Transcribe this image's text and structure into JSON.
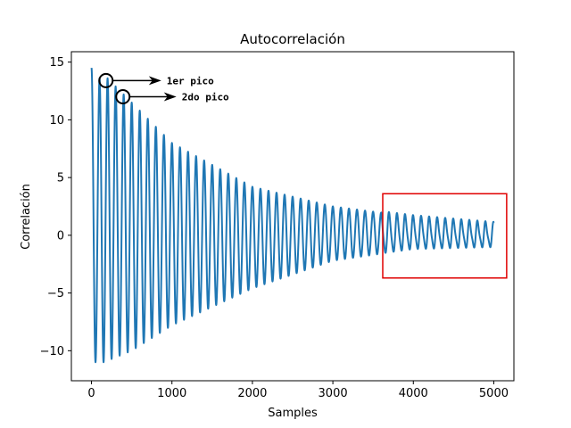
{
  "chart_data": {
    "type": "line",
    "title": "Autocorrelación",
    "xlabel": "Samples",
    "ylabel": "Correlación",
    "xlim": [
      -250,
      5250
    ],
    "ylim": [
      -12.6,
      15.9
    ],
    "xticks": [
      0,
      1000,
      2000,
      3000,
      4000,
      5000
    ],
    "xtick_labels": [
      "0",
      "1000",
      "2000",
      "3000",
      "4000",
      "5000"
    ],
    "yticks": [
      -10,
      -5,
      0,
      5,
      10,
      15
    ],
    "ytick_labels": [
      "−10",
      "−5",
      "0",
      "5",
      "10",
      "15"
    ],
    "grid": false,
    "series": [
      {
        "name": "Autocorrelación",
        "color": "#1f77b4",
        "x_start": 0,
        "x_end": 5000,
        "start_value": 14.5,
        "period_samples": 100,
        "envelope_peaks": [
          {
            "x": 200,
            "y": 13.6
          },
          {
            "x": 400,
            "y": 12.2
          },
          {
            "x": 1000,
            "y": 8.0
          },
          {
            "x": 2000,
            "y": 4.2
          },
          {
            "x": 3000,
            "y": 2.5
          },
          {
            "x": 4000,
            "y": 1.6
          },
          {
            "x": 5000,
            "y": 1.0
          }
        ],
        "envelope_troughs": [
          {
            "x": 50,
            "y": -11.0
          },
          {
            "x": 150,
            "y": -11.0
          },
          {
            "x": 500,
            "y": -10.0
          },
          {
            "x": 1000,
            "y": -7.8
          },
          {
            "x": 2000,
            "y": -4.6
          },
          {
            "x": 3000,
            "y": -2.2
          },
          {
            "x": 4000,
            "y": -1.2
          },
          {
            "x": 5000,
            "y": -1.0
          }
        ]
      }
    ],
    "annotations": [
      {
        "label": "1er pico",
        "x": 180,
        "y": 13.4,
        "marker": "circle",
        "arrow": "right"
      },
      {
        "label": "2do pico",
        "x": 390,
        "y": 12.0,
        "marker": "circle",
        "arrow": "right"
      }
    ],
    "highlight_box": {
      "color": "#e00000",
      "x_range": [
        3620,
        5160
      ],
      "y_range": [
        -3.7,
        3.6
      ]
    }
  }
}
